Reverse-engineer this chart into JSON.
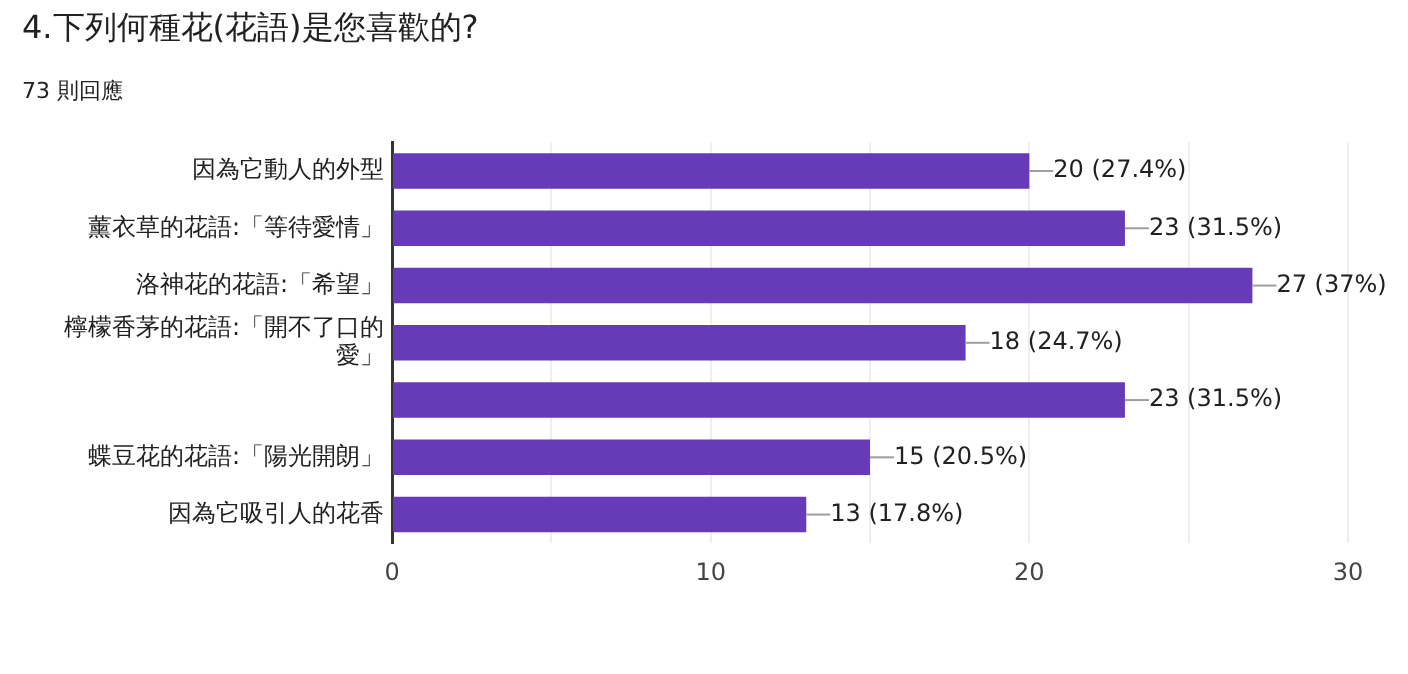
{
  "chart_data": {
    "type": "bar",
    "orientation": "horizontal",
    "title": "4.下列何種花(花語)是您喜歡的?",
    "subtitle": "73 則回應",
    "categories": [
      "因為它動人的外型",
      "薰衣草的花語:「等待愛情」",
      "洛神花的花語:「希望」",
      "檸檬香茅的花語:「開不了口的愛」",
      null,
      "蝶豆花的花語:「陽光開朗」",
      "因為它吸引人的花香"
    ],
    "values": [
      20,
      23,
      27,
      18,
      23,
      15,
      13
    ],
    "value_labels": [
      "20 (27.4%)",
      "23 (31.5%)",
      "27 (37%)",
      "18 (24.7%)",
      "23 (31.5%)",
      "15 (20.5%)",
      "13 (17.8%)"
    ],
    "color": "#673ab7",
    "xlim": [
      0,
      30
    ],
    "xticks": [
      0,
      {
        "value": 5,
        "label": null
      },
      10,
      {
        "value": 15,
        "label": null
      },
      20,
      {
        "value": 25,
        "label": null
      },
      30
    ],
    "grid": "x",
    "legend": false
  }
}
